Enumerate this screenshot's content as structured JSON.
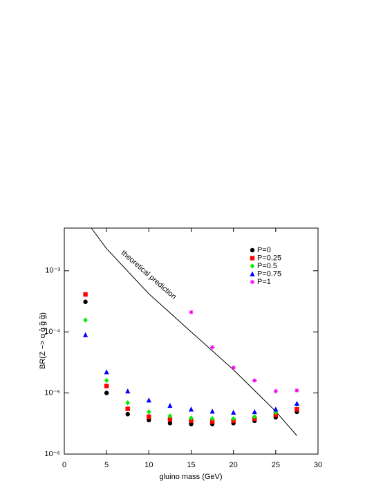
{
  "chart_data": {
    "type": "scatter",
    "x_label": "gluino mass  (GeV)",
    "y_label": "BR(Z −> q q̄ g̃ g̃)",
    "x": [
      2.5,
      5,
      7.5,
      10,
      12.5,
      15,
      17.5,
      20,
      22.5,
      25,
      27.5
    ],
    "series": [
      {
        "name": "P=0",
        "color": "#000000",
        "marker": "circle",
        "values": [
          0.00031,
          1e-05,
          4.5e-06,
          3.6e-06,
          3.2e-06,
          3.1e-06,
          3.1e-06,
          3.2e-06,
          3.5e-06,
          4e-06,
          4.9e-06
        ]
      },
      {
        "name": "P=0.25",
        "color": "#ff0000",
        "marker": "square",
        "values": [
          0.00041,
          1.3e-05,
          5.5e-06,
          4.1e-06,
          3.7e-06,
          3.5e-06,
          3.4e-06,
          3.5e-06,
          3.8e-06,
          4.4e-06,
          5.4e-06
        ]
      },
      {
        "name": "P=0.5",
        "color": "#00ee00",
        "marker": "diamond",
        "values": [
          0.000156,
          1.6e-05,
          6.9e-06,
          4.9e-06,
          4.2e-06,
          3.9e-06,
          3.8e-06,
          3.8e-06,
          4.1e-06,
          4.8e-06,
          6.5e-06
        ]
      },
      {
        "name": "P=0.75",
        "color": "#0000ff",
        "marker": "triangle",
        "values": [
          8.9e-05,
          2.2e-05,
          1.07e-05,
          7.6e-06,
          6.2e-06,
          5.4e-06,
          5e-06,
          4.8e-06,
          4.9e-06,
          5.4e-06,
          6.7e-06
        ]
      },
      {
        "name": "P=1",
        "color": "#ee00ee",
        "marker": "star",
        "values": [
          null,
          null,
          null,
          null,
          null,
          0.00021,
          5.6e-05,
          2.6e-05,
          1.6e-05,
          1.07e-05,
          1.1e-05
        ]
      }
    ],
    "curve": {
      "color": "#000000",
      "x": [
        3.2,
        5,
        10,
        15,
        20,
        25,
        27.5
      ],
      "values": [
        0.005,
        0.0023,
        0.00042,
        0.0001,
        2.4e-05,
        5e-06,
        2e-06
      ]
    },
    "annotation": "theoretical prediction",
    "xlim": [
      0,
      30
    ],
    "xticks": [
      0,
      5,
      10,
      15,
      20,
      25,
      30
    ],
    "ylim": [
      1e-06,
      0.005
    ],
    "log_y": true,
    "yticks": [
      {
        "value": 1e-06,
        "label": "10⁻⁶"
      },
      {
        "value": 1e-05,
        "label": "10⁻⁵"
      },
      {
        "value": 0.0001,
        "label": "10⁻⁴"
      },
      {
        "value": 0.001,
        "label": "10⁻³"
      }
    ],
    "legend": "upper-right"
  }
}
